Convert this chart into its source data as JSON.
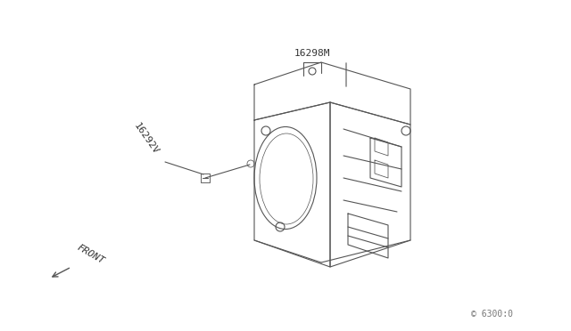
{
  "title": "",
  "background_color": "#ffffff",
  "label_16298M": "16298M",
  "label_16292V": "16292V",
  "label_front": "FRONT",
  "label_code": "© 6300:0",
  "line_color": "#555555",
  "line_color_light": "#888888",
  "text_color": "#333333"
}
